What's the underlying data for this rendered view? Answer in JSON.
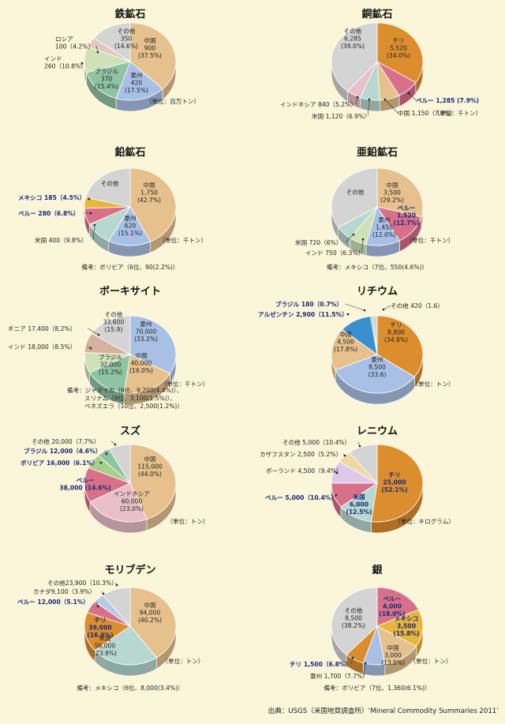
{
  "source": "出典：USGS（米国地質調査所）‘Mineral Commodity Summaries 2011’",
  "colors": {
    "china": "#e6c18d",
    "australia": "#a9c0e6",
    "brazil": "#8fc4a2",
    "india": "#cfe1b6",
    "russia": "#e0c7c0",
    "other": "#d4d4d4",
    "chile": "#dc8e2e",
    "peru": "#d8708a",
    "usa": "#b7d8d0",
    "indonesia": "#e9bfc8",
    "mexico": "#e7b63c",
    "guinea": "#d6b0a0",
    "argentina": "#3a8fcf",
    "bolivia": "#a6d08a",
    "kazakhstan": "#ecd9a6",
    "poland": "#e0c8e8",
    "canada": "#b9c9e6"
  },
  "chart_data": [
    {
      "type": "pie",
      "title": "鉄鉱石",
      "unit": "（単位：百万トン）",
      "note": "",
      "slices": [
        {
          "name": "中国",
          "value": 900,
          "percent": 37.5,
          "color": "#e6c18d",
          "label": [
            "中国",
            "900",
            "(37.5%)"
          ]
        },
        {
          "name": "豪州",
          "value": 420,
          "percent": 17.5,
          "color": "#a9c0e6",
          "label": [
            "豪州",
            "420",
            "(17.5%)"
          ]
        },
        {
          "name": "ブラジル",
          "value": 370,
          "percent": 15.4,
          "color": "#8fc4a2",
          "label": [
            "ブラジル",
            "370",
            "(15.4%)"
          ]
        },
        {
          "name": "インド",
          "value": 260,
          "percent": 10.8,
          "color": "#cfe1b6",
          "label": [
            "インド",
            "260（10.8%）"
          ]
        },
        {
          "name": "ロシア",
          "value": 100,
          "percent": 4.2,
          "color": "#e0c7c0",
          "label": [
            "ロシア",
            "100（4.2%）"
          ]
        },
        {
          "name": "その他",
          "value": 350,
          "percent": 14.6,
          "color": "#d4d4d4",
          "label": [
            "その他",
            "350",
            "(14.6%)"
          ]
        }
      ]
    },
    {
      "type": "pie",
      "title": "銅鉱石",
      "unit": "（単位：千トン）",
      "note": "",
      "slices": [
        {
          "name": "チリ",
          "value": 5520,
          "percent": 34.0,
          "color": "#dc8e2e",
          "label": [
            "チリ",
            "5,520",
            "(34.0%)"
          ]
        },
        {
          "name": "ペルー",
          "value": 1285,
          "percent": 7.9,
          "color": "#d8708a",
          "label": [
            "ペルー 1,285 (7.9%)"
          ]
        },
        {
          "name": "中国",
          "value": 1150,
          "percent": 7.0,
          "color": "#e6c18d",
          "label": [
            "中国 1,150（7.0%）"
          ]
        },
        {
          "name": "米国",
          "value": 1120,
          "percent": 6.9,
          "color": "#b7d8d0",
          "label": [
            "米国 1,120（6.9%）"
          ]
        },
        {
          "name": "インドネシア",
          "value": 840,
          "percent": 5.2,
          "color": "#e9bfc8",
          "label": [
            "インドネシア 840（5.2%）"
          ]
        },
        {
          "name": "その他",
          "value": 6285,
          "percent": 39.0,
          "color": "#d4d4d4",
          "label": [
            "その他",
            "6,285",
            "(39.0%)"
          ]
        }
      ]
    },
    {
      "type": "pie",
      "title": "鉛鉱石",
      "unit": "（単位：千トン）",
      "note": "備考：ボリビア（6位、90(2.2%)）",
      "slices": [
        {
          "name": "中国",
          "value": 1750,
          "percent": 42.7,
          "color": "#e6c18d",
          "label": [
            "中国",
            "1,750",
            "(42.7%)"
          ]
        },
        {
          "name": "豪州",
          "value": 620,
          "percent": 15.1,
          "color": "#a9c0e6",
          "label": [
            "豪州",
            "620",
            "(15.1%)"
          ]
        },
        {
          "name": "米国",
          "value": 400,
          "percent": 9.8,
          "color": "#b7d8d0",
          "label": [
            "米国 400（9.8%）"
          ]
        },
        {
          "name": "ペルー",
          "value": 280,
          "percent": 6.8,
          "color": "#d8708a",
          "label": [
            "ペルー 280（6.8%）"
          ]
        },
        {
          "name": "メキシコ",
          "value": 185,
          "percent": 4.5,
          "color": "#e7b63c",
          "label": [
            "メキシコ 185（4.5%）"
          ]
        },
        {
          "name": "その他",
          "value": 865,
          "percent": 21.1,
          "color": "#d4d4d4",
          "label": [
            "その他"
          ]
        }
      ]
    },
    {
      "type": "pie",
      "title": "亜鉛鉱石",
      "unit": "（単位：千トン）",
      "note": "備考：メキシコ（7位、550(4.6%)）",
      "slices": [
        {
          "name": "中国",
          "value": 3500,
          "percent": 29.2,
          "color": "#e6c18d",
          "label": [
            "中国",
            "3,500",
            "(29.2%)"
          ]
        },
        {
          "name": "ペルー",
          "value": 1520,
          "percent": 12.7,
          "color": "#d8708a",
          "label": [
            "ペルー",
            "1,520",
            "(12.7%)"
          ]
        },
        {
          "name": "豪州",
          "value": 1450,
          "percent": 12.0,
          "color": "#a9c0e6",
          "label": [
            "豪州",
            "1,450",
            "(12.0%)"
          ]
        },
        {
          "name": "インド",
          "value": 750,
          "percent": 6.3,
          "color": "#cfe1b6",
          "label": [
            "インド 750（6.3%）"
          ]
        },
        {
          "name": "米国",
          "value": 720,
          "percent": 6.0,
          "color": "#b7d8d0",
          "label": [
            "米国 720（6%）"
          ]
        },
        {
          "name": "その他",
          "value": 4060,
          "percent": 33.8,
          "color": "#d4d4d4",
          "label": [
            "その他"
          ]
        }
      ]
    },
    {
      "type": "pie",
      "title": "ボーキサイト",
      "unit": "（単位：千トン）",
      "note": "備考：ジャマイカ（6位、9,200(4.4%)）、\nスリナム（9位、3,100(1.5%)）、\nベネズエラ（10位、2,500(1.2%)）",
      "slices": [
        {
          "name": "豪州",
          "value": 70000,
          "percent": 33.2,
          "color": "#a9c0e6",
          "label": [
            "豪州",
            "70,000",
            "(33.2%)"
          ]
        },
        {
          "name": "中国",
          "value": 40000,
          "percent": 19.0,
          "color": "#e6c18d",
          "label": [
            "中国",
            "40,000",
            "(19.0%)"
          ]
        },
        {
          "name": "ブラジル",
          "value": 32000,
          "percent": 15.2,
          "color": "#8fc4a2",
          "label": [
            "ブラジル",
            "32,000",
            "(15.2%)"
          ]
        },
        {
          "name": "インド",
          "value": 18000,
          "percent": 8.5,
          "color": "#cfe1b6",
          "label": [
            "インド 18,000（8.5%）"
          ]
        },
        {
          "name": "ギニア",
          "value": 17400,
          "percent": 8.2,
          "color": "#d6b0a0",
          "label": [
            "ギニア 17,400（8.2%）"
          ]
        },
        {
          "name": "その他",
          "value": 33600,
          "percent": 15.9,
          "color": "#d4d4d4",
          "label": [
            "その他",
            "33,600",
            "(15.9)"
          ]
        }
      ]
    },
    {
      "type": "pie",
      "title": "リチウム",
      "unit": "（単位：トン）",
      "note": "",
      "slices": [
        {
          "name": "チリ",
          "value": 8800,
          "percent": 34.8,
          "color": "#dc8e2e",
          "label": [
            "チリ",
            "8,800",
            "(34.8%)"
          ]
        },
        {
          "name": "豪州",
          "value": 8500,
          "percent": 33.6,
          "color": "#a9c0e6",
          "label": [
            "豪州",
            "8,500",
            "(33.6)"
          ]
        },
        {
          "name": "中国",
          "value": 4500,
          "percent": 17.8,
          "color": "#e6c18d",
          "label": [
            "中国",
            "4,500",
            "(17.8%)"
          ]
        },
        {
          "name": "アルゼンチン",
          "value": 2900,
          "percent": 11.5,
          "color": "#3a8fcf",
          "label": [
            "アルゼンチン 2,900（11.5%）"
          ]
        },
        {
          "name": "ブラジル",
          "value": 180,
          "percent": 0.7,
          "color": "#8fc4a2",
          "label": [
            "ブラジル 180（0.7%）"
          ]
        },
        {
          "name": "その他",
          "value": 420,
          "percent": 1.6,
          "color": "#d4d4d4",
          "label": [
            "その他 420（1.6）"
          ]
        }
      ]
    },
    {
      "type": "pie",
      "title": "スズ",
      "unit": "（単位：トン）",
      "note": "",
      "slices": [
        {
          "name": "中国",
          "value": 115000,
          "percent": 44.0,
          "color": "#e6c18d",
          "label": [
            "中国",
            "115,000",
            "(44.0%)"
          ]
        },
        {
          "name": "インドネシア",
          "value": 60000,
          "percent": 23.0,
          "color": "#e9bfc8",
          "label": [
            "インドネシア",
            "60,000",
            "(23.0%)"
          ]
        },
        {
          "name": "ペルー",
          "value": 38000,
          "percent": 14.6,
          "color": "#d8708a",
          "label": [
            "ペルー",
            "38,000 (14.6%)"
          ]
        },
        {
          "name": "ボリビア",
          "value": 16000,
          "percent": 6.1,
          "color": "#a6d08a",
          "label": [
            "ボリビア 16,000（6.1%）"
          ]
        },
        {
          "name": "ブラジル",
          "value": 12000,
          "percent": 4.6,
          "color": "#8fc4a2",
          "label": [
            "ブラジル 12,000（4.6%）"
          ]
        },
        {
          "name": "その他",
          "value": 20000,
          "percent": 7.7,
          "color": "#d4d4d4",
          "label": [
            "その他 20,000（7.7%）"
          ]
        }
      ]
    },
    {
      "type": "pie",
      "title": "レニウム",
      "unit": "（単位：キログラム）",
      "note": "",
      "slices": [
        {
          "name": "チリ",
          "value": 25000,
          "percent": 52.1,
          "color": "#dc8e2e",
          "label": [
            "チリ",
            "25,000",
            "(52.1%)"
          ]
        },
        {
          "name": "米国",
          "value": 6000,
          "percent": 12.5,
          "color": "#b7d8d0",
          "label": [
            "米国",
            "6,000",
            "(12.5%)"
          ]
        },
        {
          "name": "ペルー",
          "value": 5000,
          "percent": 10.4,
          "color": "#d8708a",
          "label": [
            "ペルー 5,000（10.4%）"
          ]
        },
        {
          "name": "ポーランド",
          "value": 4500,
          "percent": 9.4,
          "color": "#e0c8e8",
          "label": [
            "ポーランド 4,500（9.4%）"
          ]
        },
        {
          "name": "カザフスタン",
          "value": 2500,
          "percent": 5.2,
          "color": "#ecd9a6",
          "label": [
            "カザフスタン 2,500（5.2%）"
          ]
        },
        {
          "name": "その他",
          "value": 5000,
          "percent": 10.4,
          "color": "#d4d4d4",
          "label": [
            "その他 5,000（10.4%）"
          ]
        }
      ]
    },
    {
      "type": "pie",
      "title": "モリブデン",
      "unit": "（単位：トン）",
      "note": "備考：メキシコ（6位、8,000(3.4%)）",
      "slices": [
        {
          "name": "中国",
          "value": 94000,
          "percent": 40.2,
          "color": "#e6c18d",
          "label": [
            "中国",
            "94,000",
            "(40.2%)"
          ]
        },
        {
          "name": "米国",
          "value": 56000,
          "percent": 23.9,
          "color": "#b7d8d0",
          "label": [
            "米国",
            "56,000",
            "(23.9%)"
          ]
        },
        {
          "name": "チリ",
          "value": 39000,
          "percent": 16.6,
          "color": "#dc8e2e",
          "label": [
            "チリ",
            "39,000",
            "(16.6%)"
          ]
        },
        {
          "name": "ペルー",
          "value": 12000,
          "percent": 5.1,
          "color": "#d8708a",
          "label": [
            "ペルー 12,000（5.1%）"
          ]
        },
        {
          "name": "カナダ",
          "value": 9100,
          "percent": 3.9,
          "color": "#b9c9e6",
          "label": [
            "カナダ9,100（3.9%）"
          ]
        },
        {
          "name": "その他",
          "value": 23900,
          "percent": 10.3,
          "color": "#d4d4d4",
          "label": [
            "その他23,900（10.3%）"
          ]
        }
      ]
    },
    {
      "type": "pie",
      "title": "銀",
      "unit": "（単位：トン）",
      "note": "備考：ボリビア（7位、1,360(6.1%)）",
      "slices": [
        {
          "name": "ペルー",
          "value": 4000,
          "percent": 18.0,
          "color": "#d8708a",
          "label": [
            "ペルー",
            "4,000",
            "(18.0%)"
          ]
        },
        {
          "name": "メキシコ",
          "value": 3500,
          "percent": 15.8,
          "color": "#e7b63c",
          "label": [
            "メキシコ",
            "3,500",
            "(15.8%)"
          ]
        },
        {
          "name": "中国",
          "value": 3000,
          "percent": 13.5,
          "color": "#e6c18d",
          "label": [
            "中国",
            "3,000",
            "(13.5%)"
          ]
        },
        {
          "name": "豪州",
          "value": 1700,
          "percent": 7.7,
          "color": "#a9c0e6",
          "label": [
            "豪州 1,700（7.7%）"
          ]
        },
        {
          "name": "チリ",
          "value": 1500,
          "percent": 6.8,
          "color": "#dc8e2e",
          "label": [
            "チリ 1,500（6.8%）"
          ]
        },
        {
          "name": "その他",
          "value": 8500,
          "percent": 38.2,
          "color": "#d4d4d4",
          "label": [
            "その他",
            "8,500",
            "(38.2%)"
          ]
        }
      ]
    }
  ]
}
